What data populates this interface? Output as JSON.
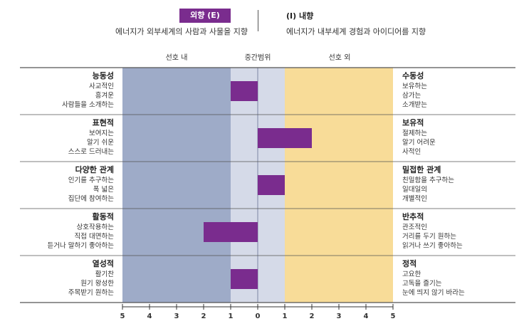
{
  "legend": {
    "e_label": "외향 (E)",
    "e_desc": "에너지가 외부세계의 사람과 사물을 지향",
    "i_label": "(I) 내향",
    "i_desc": "에너지가 내부세계 경험과 아이디어를 지향"
  },
  "zone_labels": {
    "in": "선호 내",
    "mid": "중간범위",
    "out": "선호 외"
  },
  "colors": {
    "bar": "#7a2c8e",
    "left_band": "#9eabc8",
    "mid_band": "#d5dae8",
    "right_band": "#f8dc98"
  },
  "chart_data": {
    "type": "bar",
    "orientation": "horizontal",
    "categories": [
      {
        "left_title": "능동성",
        "left_items": [
          "사교적인",
          "흥겨운",
          "사람들을 소개하는"
        ],
        "right_title": "수동성",
        "right_items": [
          "보유하는",
          "삼가는",
          "소개받는"
        ],
        "value": -1
      },
      {
        "left_title": "표현적",
        "left_items": [
          "보여지는",
          "알기 쉬운",
          "스스로 드러내는"
        ],
        "right_title": "보유적",
        "right_items": [
          "절제하는",
          "알기 어려운",
          "사적인"
        ],
        "value": 2
      },
      {
        "left_title": "다양한 관계",
        "left_items": [
          "인기를 추구하는",
          "폭 넓은",
          "집단에 참여하는"
        ],
        "right_title": "밀접한 관계",
        "right_items": [
          "친밀함을 추구하는",
          "일대일의",
          "개별적인"
        ],
        "value": 1
      },
      {
        "left_title": "활동적",
        "left_items": [
          "상호작용하는",
          "직접 대면하는",
          "듣거나 말하기 좋아하는"
        ],
        "right_title": "반추적",
        "right_items": [
          "관조적인",
          "거리를 두기 원하는",
          "읽거나 쓰기 좋아하는"
        ],
        "value": -2
      },
      {
        "left_title": "열성적",
        "left_items": [
          "활기찬",
          "원기 왕성한",
          "주목받기 원하는"
        ],
        "right_title": "정적",
        "right_items": [
          "고요한",
          "고독을 즐기는",
          "눈에 띄지 않기 바라는"
        ],
        "value": -1
      }
    ],
    "xlim": [
      -5,
      5
    ],
    "x_tick_labels": [
      "5",
      "4",
      "3",
      "2",
      "1",
      "0",
      "1",
      "2",
      "3",
      "4",
      "5"
    ],
    "mid_range": [
      -1,
      1
    ]
  }
}
